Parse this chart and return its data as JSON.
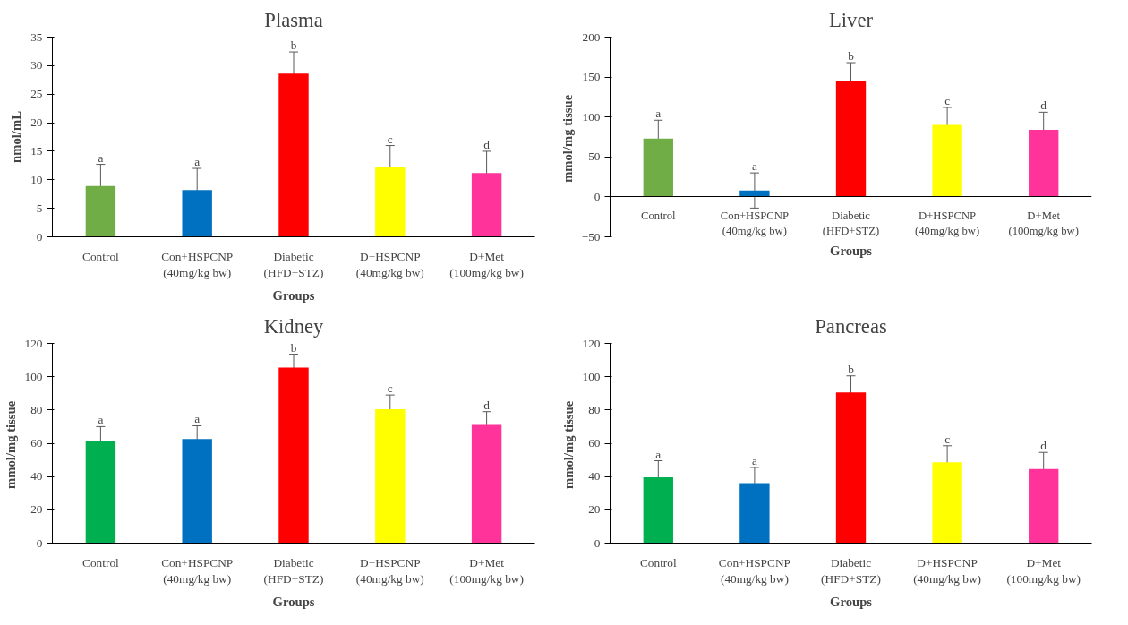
{
  "chart_data": [
    {
      "type": "bar",
      "title": "Plasma",
      "xlabel": "Groups",
      "ylabel": "nmol/mL",
      "categories": [
        "Control",
        "Con+HSPCNP\n(40mg/kg bw)",
        "Diabetic\n(HFD+STZ)",
        "D+HSPCNP\n(40mg/kg bw)",
        "D+Met\n(100mg/kg bw)"
      ],
      "values": [
        8.9,
        8.2,
        28.6,
        12.2,
        11.2
      ],
      "errors": [
        3.8,
        3.8,
        3.8,
        3.8,
        3.8
      ],
      "colors": [
        "#70ad47",
        "#0070c0",
        "#ff0000",
        "#ffff00",
        "#ff3399"
      ],
      "ylim": [
        0,
        35
      ],
      "yticks": [
        0,
        5,
        10,
        15,
        20,
        25,
        30,
        35
      ],
      "grid": false,
      "annotations": [
        {
          "text": "a",
          "x": "Control",
          "y": 12.7
        },
        {
          "text": "a",
          "x": "Con+HSPCNP\n(40mg/kg bw)",
          "y": 12
        },
        {
          "text": "b",
          "x": "Diabetic\n(HFD+STZ)",
          "y": 32.4
        },
        {
          "text": "c",
          "x": "D+HSPCNP\n(40mg/kg bw)",
          "y": 16
        },
        {
          "text": "d",
          "x": "D+Met\n(100mg/kg bw)",
          "y": 15
        }
      ]
    },
    {
      "type": "bar",
      "title": "Liver",
      "xlabel": "Groups",
      "ylabel": "mmol/mg  tissue",
      "categories": [
        "Control",
        "Con+HSPCNP\n(40mg/kg bw)",
        "Diabetic\n(HFD+STZ)",
        "D+HSPCNP\n(40mg/kg bw)",
        "D+Met\n(100mg/kg bw)"
      ],
      "values": [
        73,
        8,
        145,
        90,
        84
      ],
      "errors": [
        23,
        22,
        23,
        22,
        22
      ],
      "colors": [
        "#70ad47",
        "#0070c0",
        "#ff0000",
        "#ffff00",
        "#ff3399"
      ],
      "ylim": [
        -50,
        200
      ],
      "yticks": [
        -50,
        0,
        50,
        100,
        150,
        200
      ],
      "grid": false,
      "annotations": [
        {
          "text": "a",
          "x": "Control",
          "y": 96
        },
        {
          "text": "a",
          "x": "Con+HSPCNP\n(40mg/kg bw)",
          "y": 30
        },
        {
          "text": "b",
          "x": "Diabetic\n(HFD+STZ)",
          "y": 168
        },
        {
          "text": "c",
          "x": "D+HSPCNP\n(40mg/kg bw)",
          "y": 112
        },
        {
          "text": "d",
          "x": "D+Met\n(100mg/kg bw)",
          "y": 106
        }
      ]
    },
    {
      "type": "bar",
      "title": "Kidney",
      "xlabel": "Groups",
      "ylabel": "mmol/mg  tissue",
      "categories": [
        "Control",
        "Con+HSPCNP\n(40mg/kg bw)",
        "Diabetic\n(HFD+STZ)",
        "D+HSPCNP\n(40mg/kg bw)",
        "D+Met\n(100mg/kg bw)"
      ],
      "values": [
        61.5,
        62.5,
        105.5,
        80.5,
        71
      ],
      "errors": [
        8.5,
        8,
        8,
        8.5,
        8
      ],
      "colors": [
        "#00b050",
        "#0070c0",
        "#ff0000",
        "#ffff00",
        "#ff3399"
      ],
      "ylim": [
        0,
        120
      ],
      "yticks": [
        0,
        20,
        40,
        60,
        80,
        100,
        120
      ],
      "grid": false,
      "annotations": [
        {
          "text": "a",
          "x": "Control",
          "y": 70
        },
        {
          "text": "a",
          "x": "Con+HSPCNP\n(40mg/kg bw)",
          "y": 70.5
        },
        {
          "text": "b",
          "x": "Diabetic\n(HFD+STZ)",
          "y": 113.5
        },
        {
          "text": "c",
          "x": "D+HSPCNP\n(40mg/kg bw)",
          "y": 89
        },
        {
          "text": "d",
          "x": "D+Met\n(100mg/kg bw)",
          "y": 79
        }
      ]
    },
    {
      "type": "bar",
      "title": "Pancreas",
      "xlabel": "Groups",
      "ylabel": "mmol/mg  tissue",
      "categories": [
        "Control",
        "Con+HSPCNP\n(40mg/kg bw)",
        "Diabetic\n(HFD+STZ)",
        "D+HSPCNP\n(40mg/kg bw)",
        "D+Met\n(100mg/kg bw)"
      ],
      "values": [
        39.5,
        36,
        90.5,
        48.5,
        44.5
      ],
      "errors": [
        10,
        9.5,
        10,
        10,
        10
      ],
      "colors": [
        "#00b050",
        "#0070c0",
        "#ff0000",
        "#ffff00",
        "#ff3399"
      ],
      "ylim": [
        0,
        120
      ],
      "yticks": [
        0,
        20,
        40,
        60,
        80,
        100,
        120
      ],
      "grid": false,
      "annotations": [
        {
          "text": "a",
          "x": "Control",
          "y": 49.5
        },
        {
          "text": "a",
          "x": "Con+HSPCNP\n(40mg/kg bw)",
          "y": 45.5
        },
        {
          "text": "b",
          "x": "Diabetic\n(HFD+STZ)",
          "y": 100.5
        },
        {
          "text": "c",
          "x": "D+HSPCNP\n(40mg/kg bw)",
          "y": 58.5
        },
        {
          "text": "d",
          "x": "D+Met\n(100mg/kg bw)",
          "y": 54.5
        }
      ]
    }
  ]
}
